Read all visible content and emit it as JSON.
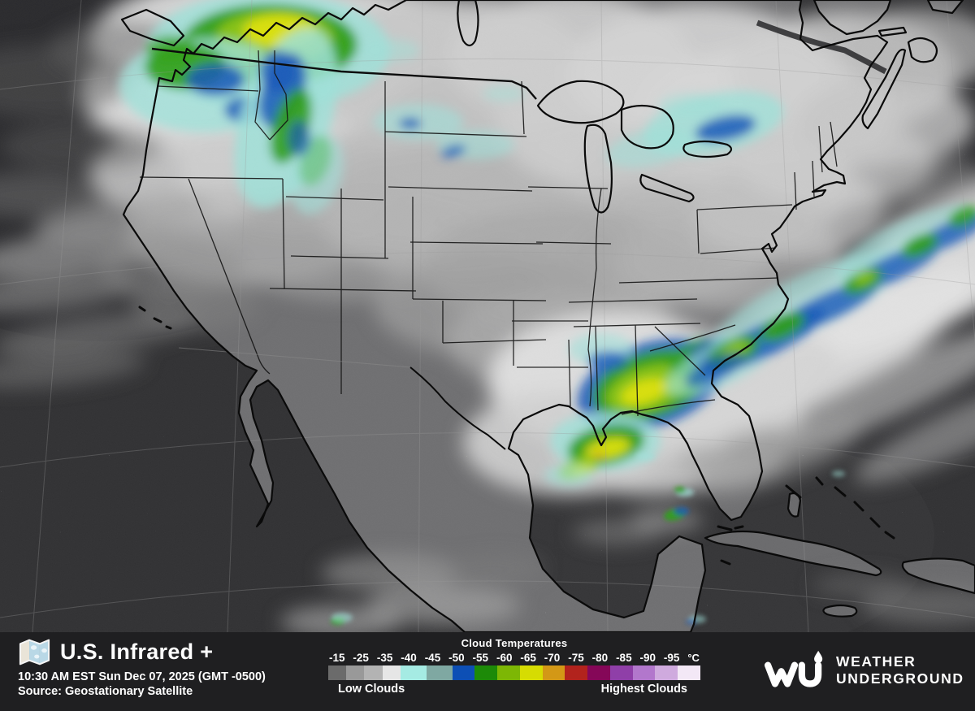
{
  "header": {
    "title": "U.S. Infrared +",
    "timestamp": "10:30 AM EST Sun Dec 07, 2025 (GMT -0500)",
    "source": "Source: Geostationary Satellite"
  },
  "legend": {
    "title": "Cloud Temperatures",
    "unit": "°C",
    "low_label": "Low Clouds",
    "high_label": "Highest Clouds",
    "ticks": [
      "-15",
      "-25",
      "-35",
      "-40",
      "-45",
      "-50",
      "-55",
      "-60",
      "-65",
      "-70",
      "-75",
      "-80",
      "-85",
      "-90",
      "-95"
    ],
    "swatches": [
      "#6b6b6b",
      "#999999",
      "#b3b3b3",
      "#e6e6e6",
      "#a5ebe3",
      "#7fa8a2",
      "#0d4fb5",
      "#1d8a08",
      "#7db705",
      "#d6dc02",
      "#d39816",
      "#b2231d",
      "#850758",
      "#8f3fa8",
      "#b277cc",
      "#cfaade",
      "#f3e8f6"
    ]
  },
  "branding": {
    "name_line1": "WEATHER",
    "name_line2": "UNDERGROUND",
    "logo_icon": "wu-droplet-logo",
    "title_icon": "folded-map"
  },
  "map": {
    "type": "satellite-infrared",
    "region": "United States",
    "palette": {
      "ocean": "#313133",
      "land": "#6f6f71",
      "lake": "#2c2c2e",
      "coastline": "#0a0a0a",
      "cloud_low": "#c9c9c9",
      "cloud_cyan": "#9fe0d8",
      "cloud_blue": "#1658b8",
      "cloud_green": "#2f9e14",
      "cloud_yellow": "#dce010"
    }
  }
}
